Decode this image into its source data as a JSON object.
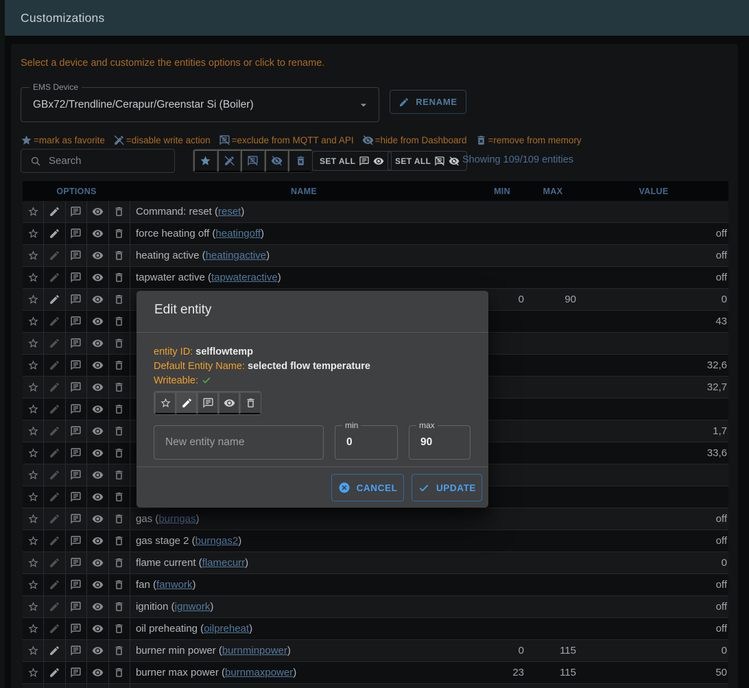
{
  "app": {
    "title": "Customizations"
  },
  "intro": "Select a device and customize the entities options or click to rename.",
  "device_select": {
    "label": "EMS Device",
    "value": "GBx72/Trendline/Cerapur/Greenstar Si (Boiler)"
  },
  "rename_button": "RENAME",
  "legend": [
    {
      "icon": "star-filled-icon",
      "text": "=mark as favorite"
    },
    {
      "icon": "edit-off-icon",
      "text": "=disable write action"
    },
    {
      "icon": "comment-off-icon",
      "text": "=exclude from MQTT and API"
    },
    {
      "icon": "visibility-off-icon",
      "text": "=hide from Dashboard"
    },
    {
      "icon": "delete-forever-icon",
      "text": "=remove from memory"
    }
  ],
  "toolbar": {
    "search_placeholder": "Search",
    "filter_buttons": [
      "star-filled-icon",
      "edit-off-icon",
      "comment-off-icon",
      "visibility-off-icon",
      "delete-forever-icon"
    ],
    "set_all_show": {
      "label": "SET ALL",
      "icons": [
        "comment-icon",
        "visibility-icon"
      ]
    },
    "set_all_hide": {
      "label": "SET ALL",
      "icons": [
        "comment-off-icon",
        "visibility-off-icon"
      ]
    },
    "showing": "Showing 109/109 entities"
  },
  "table": {
    "headers": {
      "options": "OPTIONS",
      "name": "NAME",
      "min": "MIN",
      "max": "MAX",
      "value": "VALUE"
    },
    "rows": [
      {
        "name": "Command: reset",
        "id": "reset",
        "writable": true,
        "min": "",
        "max": "",
        "value": ""
      },
      {
        "name": "force heating off",
        "id": "heatingoff",
        "writable": true,
        "min": "",
        "max": "",
        "value": "off"
      },
      {
        "name": "heating active",
        "id": "heatingactive",
        "writable": false,
        "min": "",
        "max": "",
        "value": "off"
      },
      {
        "name": "tapwater active",
        "id": "tapwateractive",
        "writable": false,
        "min": "",
        "max": "",
        "value": "off"
      },
      {
        "name": "",
        "id": "",
        "writable": true,
        "min": "0",
        "max": "90",
        "value": "0"
      },
      {
        "name": "",
        "id": "",
        "writable": false,
        "min": "",
        "max": "",
        "value": "43"
      },
      {
        "name": "",
        "id": "",
        "writable": false,
        "min": "",
        "max": "",
        "value": ""
      },
      {
        "name": "",
        "id": "",
        "writable": false,
        "min": "",
        "max": "",
        "value": "32,6"
      },
      {
        "name": "",
        "id": "",
        "writable": false,
        "min": "",
        "max": "",
        "value": "32,7"
      },
      {
        "name": "",
        "id": "",
        "writable": false,
        "min": "",
        "max": "",
        "value": ""
      },
      {
        "name": "",
        "id": "",
        "writable": false,
        "min": "",
        "max": "",
        "value": "1,7"
      },
      {
        "name": "",
        "id": "",
        "writable": false,
        "min": "",
        "max": "",
        "value": "33,6"
      },
      {
        "name": "",
        "id": "",
        "writable": false,
        "min": "",
        "max": "",
        "value": ""
      },
      {
        "name": "",
        "id": "",
        "writable": false,
        "min": "",
        "max": "",
        "value": ""
      },
      {
        "name": "gas",
        "id": "burngas",
        "writable": false,
        "min": "",
        "max": "",
        "value": "off"
      },
      {
        "name": "gas stage 2",
        "id": "burngas2",
        "writable": false,
        "min": "",
        "max": "",
        "value": "off"
      },
      {
        "name": "flame current",
        "id": "flamecurr",
        "writable": false,
        "min": "",
        "max": "",
        "value": "0"
      },
      {
        "name": "fan",
        "id": "fanwork",
        "writable": false,
        "min": "",
        "max": "",
        "value": "off"
      },
      {
        "name": "ignition",
        "id": "ignwork",
        "writable": false,
        "min": "",
        "max": "",
        "value": "off"
      },
      {
        "name": "oil preheating",
        "id": "oilpreheat",
        "writable": false,
        "min": "",
        "max": "",
        "value": "off"
      },
      {
        "name": "burner min power",
        "id": "burnminpower",
        "writable": true,
        "min": "0",
        "max": "115",
        "value": "0"
      },
      {
        "name": "burner max power",
        "id": "burnmaxpower",
        "writable": true,
        "min": "23",
        "max": "115",
        "value": "50"
      },
      {
        "name": "",
        "id": "",
        "writable": false,
        "min": "",
        "max": "",
        "value": ""
      }
    ]
  },
  "dialog": {
    "title": "Edit entity",
    "entity_id_label": "entity ID:",
    "entity_id": "selflowtemp",
    "default_name_label": "Default Entity Name:",
    "default_name": "selected flow temperature",
    "writeable_label": "Writeable:",
    "writeable": true,
    "toggles": [
      "star-icon",
      "edit-icon",
      "comment-icon",
      "visibility-icon",
      "delete-icon"
    ],
    "selected_toggle": "edit-icon",
    "name_input_placeholder": "New entity name",
    "min_field": {
      "label": "min",
      "value": "0"
    },
    "max_field": {
      "label": "max",
      "value": "90"
    },
    "cancel_button": "CANCEL",
    "update_button": "UPDATE"
  },
  "colors": {
    "appbar": "#24363e",
    "accent_orange": "#aa6c23",
    "dialog_orange": "#f0a02c",
    "link_blue": "#527a9f",
    "header_blue": "#456a8e",
    "button_blue": "#47a2f7",
    "success_green": "#4caf50"
  }
}
